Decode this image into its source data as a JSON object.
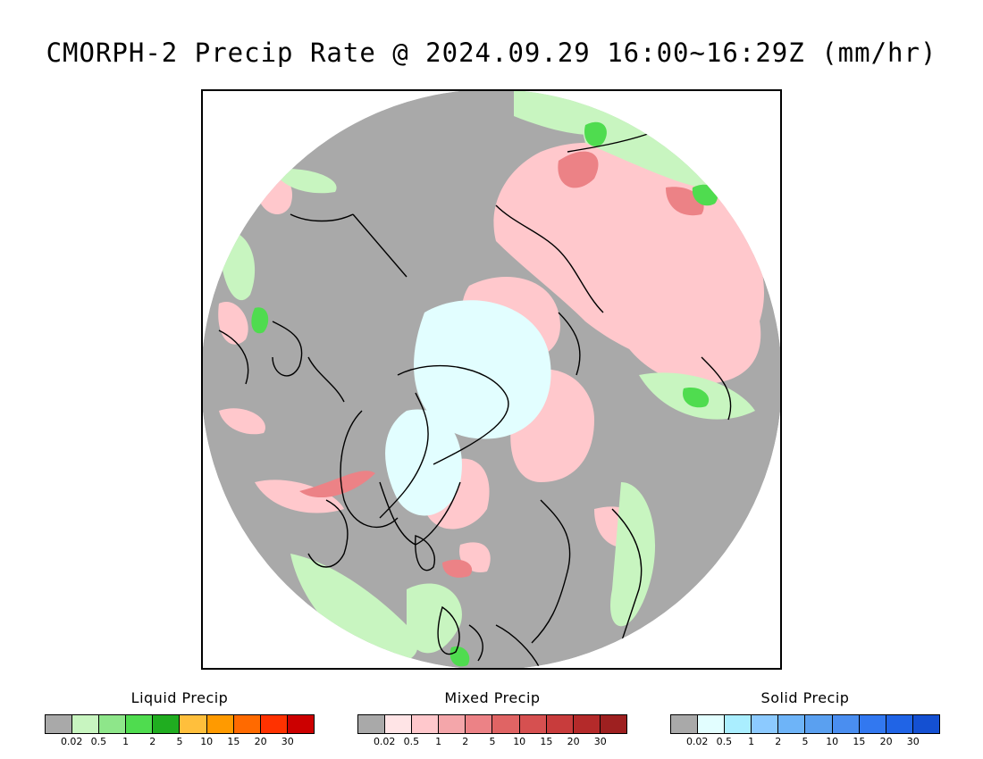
{
  "title": "CMORPH-2 Precip Rate @ 2024.09.29 16:00~16:29Z (mm/hr)",
  "map": {
    "projection": "north polar stereographic",
    "background_color": "#a9a9a9",
    "coastline_color": "#000000"
  },
  "legends": [
    {
      "title": "Liquid Precip",
      "colors": [
        "#a9a9a9",
        "#c8f5c0",
        "#8ee68a",
        "#4fdc4f",
        "#20ad20",
        "#ffbf3c",
        "#ff9a00",
        "#ff6a00",
        "#ff3200",
        "#cc0000"
      ],
      "ticks": [
        "0.02",
        "0.5",
        "1",
        "2",
        "5",
        "10",
        "15",
        "20",
        "30"
      ]
    },
    {
      "title": "Mixed Precip",
      "colors": [
        "#a9a9a9",
        "#ffe4e6",
        "#ffc8cc",
        "#f4a6aa",
        "#ec8286",
        "#e06464",
        "#d65050",
        "#c83c3c",
        "#b42a2a",
        "#9e2020"
      ],
      "ticks": [
        "0.02",
        "0.5",
        "1",
        "2",
        "5",
        "10",
        "15",
        "20",
        "30"
      ]
    },
    {
      "title": "Solid Precip",
      "colors": [
        "#a9a9a9",
        "#e2feff",
        "#aaeeff",
        "#8ccaff",
        "#6eb4f8",
        "#5aa0f0",
        "#4a8ef0",
        "#3278f0",
        "#2064e6",
        "#1450d2"
      ],
      "ticks": [
        "0.02",
        "0.5",
        "1",
        "2",
        "5",
        "10",
        "15",
        "20",
        "30"
      ]
    }
  ]
}
